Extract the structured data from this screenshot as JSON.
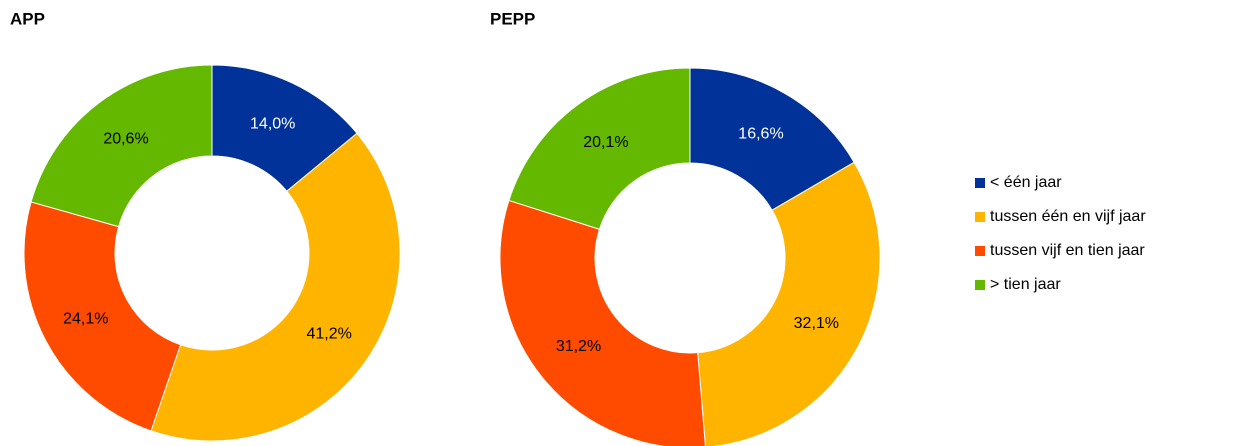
{
  "chart_data": [
    {
      "type": "donut",
      "title": "APP",
      "categories": [
        "< één jaar",
        "tussen één en vijf jaar",
        "tussen vijf en tien jaar",
        "> tien jaar"
      ],
      "values": [
        14.0,
        41.2,
        24.1,
        20.6
      ],
      "value_labels": [
        "14,0%",
        "41,2%",
        "24,1%",
        "20,6%"
      ],
      "colors": [
        "#003299",
        "#ffb400",
        "#ff4b00",
        "#65b800"
      ]
    },
    {
      "type": "donut",
      "title": "PEPP",
      "values": [
        16.6,
        32.1,
        31.2,
        20.1
      ],
      "value_labels": [
        "16,6%",
        "32,1%",
        "31,2%",
        "20,1%"
      ],
      "colors": [
        "#003299",
        "#ffb400",
        "#ff4b00",
        "#65b800"
      ]
    }
  ]
}
